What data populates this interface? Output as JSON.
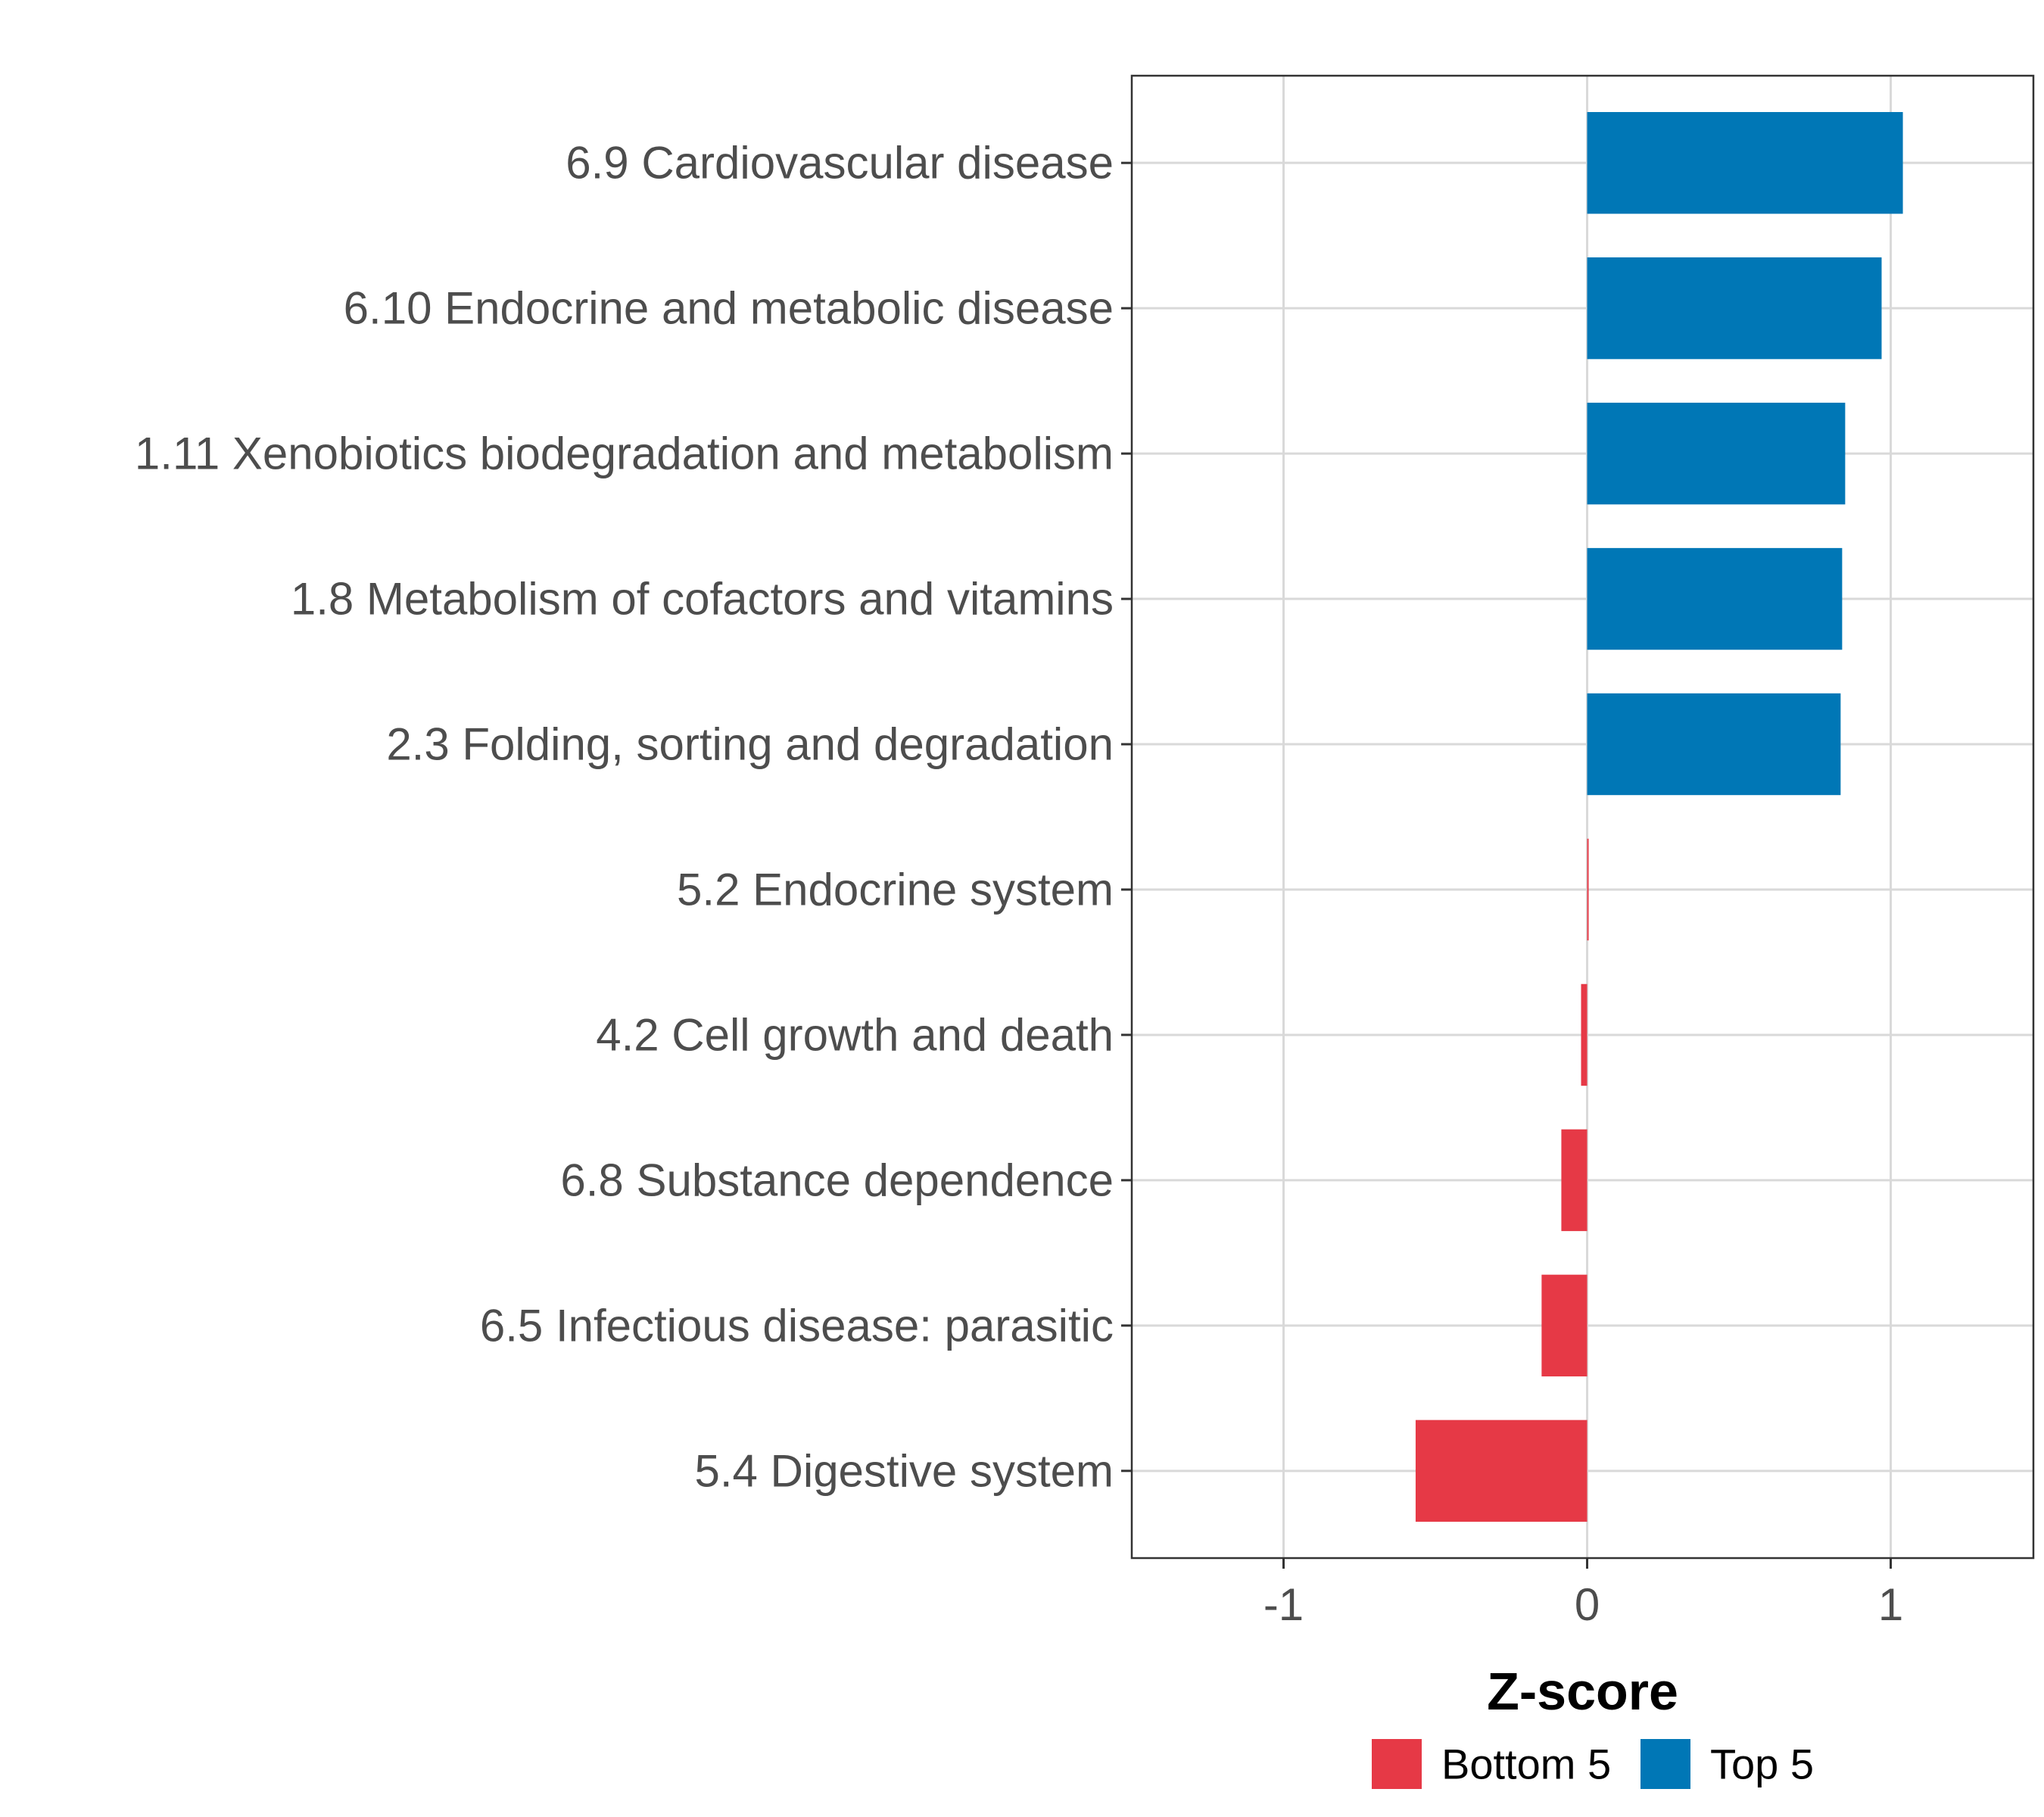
{
  "colors": {
    "bottom": "#e63946",
    "top": "#0077b6",
    "grid": "#d9d9d9",
    "panel_border": "#333333",
    "tick_text": "#4d4d4d"
  },
  "chart_data": {
    "type": "bar",
    "orientation": "horizontal",
    "title": "",
    "xlabel": "Z-score",
    "ylabel": "",
    "xlim": [
      -1.5,
      1.47
    ],
    "x_ticks": [
      -1,
      0,
      1
    ],
    "x_tick_labels": [
      "-1",
      "0",
      "1"
    ],
    "grid": true,
    "legend_position": "bottom",
    "legend": [
      {
        "name": "Bottom 5",
        "color_key": "bottom"
      },
      {
        "name": "Top 5",
        "color_key": "top"
      }
    ],
    "categories": [
      "6.9 Cardiovascular disease",
      "6.10 Endocrine and metabolic disease",
      "1.11 Xenobiotics biodegradation and metabolism",
      "1.8 Metabolism of cofactors and vitamins",
      "2.3 Folding, sorting and degradation",
      "5.2 Endocrine system",
      "4.2 Cell growth and death",
      "6.8 Substance dependence",
      "6.5 Infectious disease: parasitic",
      "5.4 Digestive system"
    ],
    "values": [
      1.04,
      0.97,
      0.85,
      0.84,
      0.835,
      0.005,
      -0.02,
      -0.085,
      -0.15,
      -0.565
    ],
    "groups": [
      "Top 5",
      "Top 5",
      "Top 5",
      "Top 5",
      "Top 5",
      "Bottom 5",
      "Bottom 5",
      "Bottom 5",
      "Bottom 5",
      "Bottom 5"
    ]
  }
}
